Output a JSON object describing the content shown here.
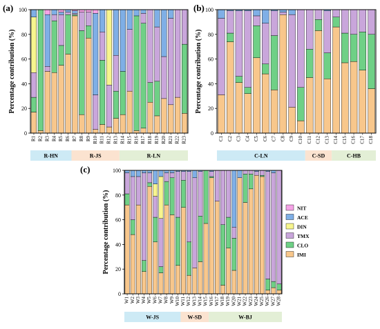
{
  "legend": {
    "items": [
      {
        "key": "NIT",
        "label": "NIT",
        "color": "#F5A3E6"
      },
      {
        "key": "ACE",
        "label": "ACE",
        "color": "#7FAFE6"
      },
      {
        "key": "DIN",
        "label": "DIN",
        "color": "#F7F58E"
      },
      {
        "key": "TMX",
        "label": "TMX",
        "color": "#C9A6DB"
      },
      {
        "key": "CLO",
        "label": "CLO",
        "color": "#6FD086"
      },
      {
        "key": "IMI",
        "label": "IMI",
        "color": "#F8C78C"
      }
    ]
  },
  "chart_data": [
    {
      "panel": "(a)",
      "type": "bar",
      "stacked": true,
      "ylabel": "Percentage contribution (%)",
      "ylim": [
        0,
        100
      ],
      "yticks": [
        0,
        20,
        40,
        60,
        80,
        100
      ],
      "stack_order": [
        "IMI",
        "CLO",
        "TMX",
        "DIN",
        "ACE",
        "NIT"
      ],
      "categories": [
        "R1",
        "R2",
        "R3",
        "R4",
        "R5",
        "R6",
        "R7",
        "R8",
        "R9",
        "R10",
        "R11",
        "R12",
        "R13",
        "R14",
        "R15",
        "R16",
        "R17",
        "R18",
        "R19",
        "R20",
        "R21",
        "R22",
        "R23"
      ],
      "series": [
        {
          "name": "IMI",
          "values": [
            17,
            2,
            50,
            49,
            55,
            64,
            95,
            15,
            77,
            3,
            7,
            5,
            12,
            15,
            34,
            2,
            4,
            25,
            14,
            28,
            23,
            29,
            16
          ]
        },
        {
          "name": "CLO",
          "values": [
            12,
            98,
            0,
            42,
            16,
            32,
            1,
            68,
            10,
            0,
            52,
            0,
            22,
            35,
            0,
            93,
            85,
            16,
            28,
            0,
            0,
            0,
            56
          ]
        },
        {
          "name": "TMX",
          "values": [
            20,
            0,
            4,
            5,
            25,
            2,
            1,
            15,
            11,
            28,
            23,
            34,
            29,
            0,
            50,
            0,
            8,
            59,
            44,
            34,
            70,
            71,
            28
          ]
        },
        {
          "name": "DIN",
          "values": [
            45,
            0,
            0,
            0,
            0,
            0,
            0,
            0,
            0,
            0,
            0,
            61,
            0,
            0,
            0,
            0,
            0,
            0,
            0,
            0,
            0,
            0,
            0
          ]
        },
        {
          "name": "ACE",
          "values": [
            6,
            0,
            42,
            4,
            2,
            2,
            2,
            0,
            0,
            66,
            18,
            0,
            37,
            50,
            16,
            5,
            3,
            0,
            14,
            38,
            7,
            0,
            0
          ]
        },
        {
          "name": "NIT",
          "values": [
            0,
            0,
            4,
            0,
            2,
            0,
            1,
            2,
            2,
            3,
            0,
            0,
            0,
            0,
            0,
            0,
            0,
            0,
            0,
            0,
            0,
            0,
            0
          ]
        }
      ],
      "groups": [
        {
          "label": "R-HN",
          "from": 0,
          "to": 5,
          "color": "#CDEAF5"
        },
        {
          "label": "R-JS",
          "from": 6,
          "to": 12,
          "color": "#FBE3D0"
        },
        {
          "label": "R-LN",
          "from": 13,
          "to": 22,
          "color": "#E3EFD6"
        }
      ]
    },
    {
      "panel": "(b)",
      "type": "bar",
      "stacked": true,
      "ylabel": "Percentage contribution (%)",
      "ylim": [
        0,
        100
      ],
      "yticks": [
        0,
        20,
        40,
        60,
        80,
        100
      ],
      "stack_order": [
        "IMI",
        "CLO",
        "TMX",
        "DIN",
        "ACE",
        "NIT"
      ],
      "categories": [
        "C1",
        "C2",
        "C3",
        "C4",
        "C5",
        "C6",
        "C7",
        "C8",
        "C9",
        "C10",
        "C11",
        "C12",
        "C13",
        "C14",
        "C15",
        "C16",
        "C17",
        "C18"
      ],
      "series": [
        {
          "name": "IMI",
          "values": [
            31,
            74,
            41,
            32,
            61,
            48,
            35,
            96,
            21,
            10,
            45,
            83,
            44,
            86,
            57,
            58,
            51,
            36
          ]
        },
        {
          "name": "CLO",
          "values": [
            0,
            7,
            5,
            5,
            26,
            8,
            44,
            0,
            0,
            27,
            23,
            9,
            21,
            8,
            24,
            22,
            31,
            44
          ]
        },
        {
          "name": "TMX",
          "values": [
            62,
            18,
            53,
            62,
            8,
            33,
            20,
            2,
            75,
            63,
            32,
            8,
            34,
            6,
            19,
            20,
            18,
            20
          ]
        },
        {
          "name": "DIN",
          "values": [
            0,
            0,
            0,
            0,
            0,
            0,
            0,
            0,
            0,
            0,
            0,
            0,
            0,
            0,
            0,
            0,
            0,
            0
          ]
        },
        {
          "name": "ACE",
          "values": [
            7,
            1,
            1,
            1,
            5,
            11,
            1,
            2,
            4,
            0,
            0,
            0,
            1,
            0,
            0,
            0,
            0,
            0
          ]
        },
        {
          "name": "NIT",
          "values": [
            0,
            0,
            0,
            0,
            0,
            0,
            0,
            0,
            0,
            0,
            0,
            0,
            0,
            0,
            0,
            0,
            0,
            0
          ]
        }
      ],
      "groups": [
        {
          "label": "C-LN",
          "from": 0,
          "to": 9,
          "color": "#CDEAF5"
        },
        {
          "label": "C-SD",
          "from": 10,
          "to": 12,
          "color": "#FBE3D0"
        },
        {
          "label": "C-HB",
          "from": 13,
          "to": 17,
          "color": "#E3EFD6"
        }
      ]
    },
    {
      "panel": "(c)",
      "type": "bar",
      "stacked": true,
      "ylabel": "Percentage contribution (%)",
      "ylim": [
        0,
        100
      ],
      "yticks": [
        0,
        20,
        40,
        60,
        80,
        100
      ],
      "stack_order": [
        "IMI",
        "CLO",
        "TMX",
        "DIN",
        "ACE",
        "NIT"
      ],
      "categories": [
        "W1",
        "W2",
        "W3",
        "W4",
        "W5",
        "W6",
        "W7",
        "W8",
        "W9",
        "W10",
        "W11",
        "W12",
        "W13",
        "W14",
        "W15",
        "W16",
        "W17",
        "W18",
        "W19",
        "W20",
        "W21",
        "W22",
        "W23",
        "W24",
        "W25",
        "W26",
        "W27",
        "W28"
      ],
      "series": [
        {
          "name": "IMI",
          "values": [
            72,
            48,
            72,
            18,
            87,
            42,
            17,
            72,
            64,
            23,
            70,
            15,
            21,
            26,
            57,
            94,
            75,
            7,
            37,
            19,
            94,
            74,
            85,
            96,
            95,
            3,
            5,
            3
          ]
        },
        {
          "name": "CLO",
          "values": [
            9,
            12,
            0,
            9,
            3,
            20,
            5,
            19,
            30,
            39,
            22,
            27,
            0,
            37,
            43,
            1,
            0,
            49,
            25,
            26,
            0,
            23,
            12,
            0,
            1,
            9,
            5,
            5
          ]
        },
        {
          "name": "TMX",
          "values": [
            17,
            35,
            23,
            71,
            8,
            17,
            39,
            7,
            4,
            37,
            7,
            57,
            73,
            36,
            0,
            4,
            25,
            44,
            38,
            9,
            0,
            3,
            3,
            3,
            4,
            87,
            88,
            92
          ]
        },
        {
          "name": "DIN",
          "values": [
            0,
            0,
            0,
            0,
            0,
            10,
            34,
            0,
            0,
            0,
            0,
            0,
            0,
            0,
            0,
            0,
            0,
            0,
            0,
            0,
            0,
            0,
            0,
            0,
            0,
            0,
            0,
            0
          ]
        },
        {
          "name": "ACE",
          "values": [
            2,
            5,
            5,
            2,
            2,
            11,
            5,
            2,
            2,
            1,
            1,
            1,
            6,
            1,
            0,
            1,
            0,
            0,
            0,
            46,
            6,
            0,
            0,
            1,
            0,
            1,
            2,
            0
          ]
        },
        {
          "name": "NIT",
          "values": [
            0,
            0,
            0,
            0,
            0,
            0,
            0,
            0,
            0,
            0,
            0,
            0,
            0,
            0,
            0,
            0,
            0,
            0,
            0,
            0,
            0,
            0,
            0,
            0,
            0,
            0,
            0,
            0
          ]
        }
      ],
      "groups": [
        {
          "label": "W-JS",
          "from": 0,
          "to": 9,
          "color": "#CDEAF5"
        },
        {
          "label": "W-SD",
          "from": 10,
          "to": 14,
          "color": "#FBE3D0"
        },
        {
          "label": "W-BJ",
          "from": 15,
          "to": 27,
          "color": "#E3EFD6"
        }
      ]
    }
  ]
}
